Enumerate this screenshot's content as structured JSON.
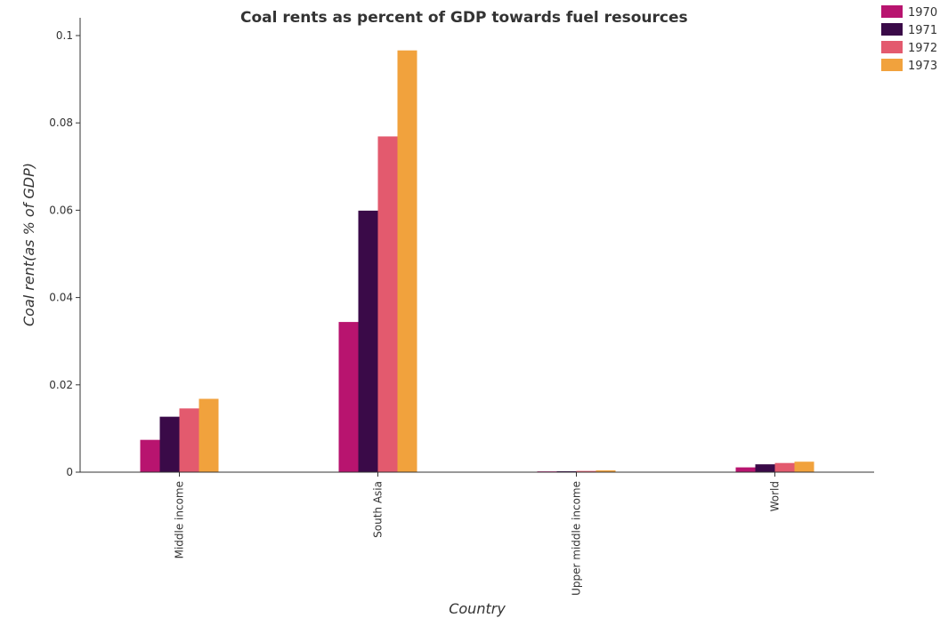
{
  "chart_data": {
    "type": "bar",
    "title": "Coal rents as percent of GDP towards fuel resources",
    "xlabel": "Country",
    "ylabel": "Coal rent(as % of GDP)",
    "categories": [
      "Middle income",
      "South Asia",
      "Upper middle income",
      "World"
    ],
    "series": [
      {
        "name": "1970",
        "color": "#b8146f",
        "values": [
          0.0074,
          0.0344,
          0.00018,
          0.0011
        ]
      },
      {
        "name": "1971",
        "color": "#3a0a48",
        "values": [
          0.0127,
          0.0599,
          0.00022,
          0.0018
        ]
      },
      {
        "name": "1972",
        "color": "#e35a6e",
        "values": [
          0.0146,
          0.0769,
          0.00028,
          0.0021
        ]
      },
      {
        "name": "1973",
        "color": "#f1a23d",
        "values": [
          0.0168,
          0.0966,
          0.00042,
          0.0024
        ]
      }
    ],
    "ylim": [
      0,
      0.1
    ],
    "yticks": [
      0,
      0.02,
      0.04,
      0.06,
      0.08,
      0.1
    ],
    "ytick_labels": [
      "0",
      "0.02",
      "0.04",
      "0.06",
      "0.08",
      "0.1"
    ],
    "grid": false,
    "legend_position": "top-right"
  }
}
